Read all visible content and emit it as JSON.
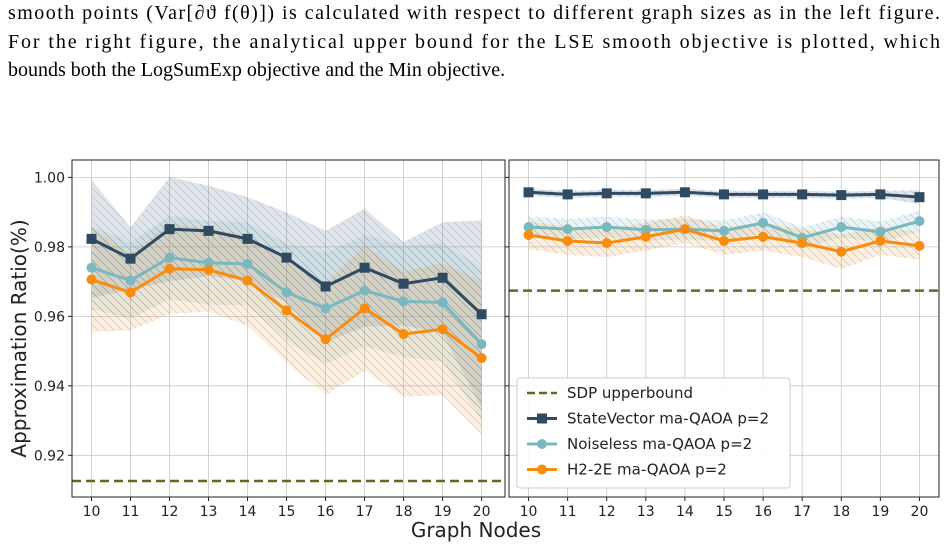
{
  "text": [
    "smooth points (Var[∂ϑ f(θ)]) is calculated with respect to different graph sizes as in the left figure.",
    "For the right figure, the analytical upper bound for the LSE smooth objective is plotted, which",
    "bounds both the LogSumExp objective and the Min objective."
  ],
  "xlabel": "Graph Nodes",
  "chart_data": [
    {
      "type": "line",
      "ylabel": "Approximation Ratio(%)",
      "x": [
        10,
        11,
        12,
        13,
        14,
        15,
        16,
        17,
        18,
        19,
        20
      ],
      "xlim": [
        9.5,
        20.6
      ],
      "xticks": [
        10,
        11,
        12,
        13,
        14,
        15,
        16,
        17,
        18,
        19,
        20
      ],
      "ylim": [
        0.908,
        1.005
      ],
      "yticks": [
        0.92,
        0.94,
        0.96,
        0.98,
        {
          "value": 1.0,
          "label": "1.00"
        }
      ],
      "ytick_labels": true,
      "grid": true,
      "hline": {
        "value": 0.9126,
        "color": "#6b6420"
      },
      "series": [
        {
          "color": "#2f4b64",
          "marker": "square",
          "values": [
            0.9823,
            0.9766,
            0.9851,
            0.9846,
            0.9823,
            0.9769,
            0.9686,
            0.974,
            0.9694,
            0.9711,
            0.9606
          ],
          "err": [
            0.017,
            0.009,
            0.015,
            0.013,
            0.012,
            0.013,
            0.016,
            0.017,
            0.012,
            0.016,
            0.027
          ]
        },
        {
          "color": "#7ab8bf",
          "marker": "circle",
          "values": [
            0.974,
            0.9703,
            0.9769,
            0.9754,
            0.9751,
            0.9669,
            0.9623,
            0.9674,
            0.9643,
            0.964,
            0.952
          ],
          "err": [
            0.012,
            0.011,
            0.012,
            0.012,
            0.012,
            0.014,
            0.016,
            0.016,
            0.016,
            0.017,
            0.022
          ]
        },
        {
          "color": "#f98c0d",
          "marker": "circle",
          "values": [
            0.9706,
            0.9669,
            0.9737,
            0.9734,
            0.9703,
            0.9617,
            0.9534,
            0.9623,
            0.9549,
            0.9563,
            0.948
          ],
          "err": [
            0.015,
            0.011,
            0.013,
            0.012,
            0.013,
            0.015,
            0.016,
            0.018,
            0.018,
            0.019,
            0.022
          ]
        }
      ]
    },
    {
      "type": "line",
      "x": [
        10,
        11,
        12,
        13,
        14,
        15,
        16,
        17,
        18,
        19,
        20
      ],
      "xlim": [
        9.5,
        20.5
      ],
      "xticks": [
        10,
        11,
        12,
        13,
        14,
        15,
        16,
        17,
        18,
        19,
        20
      ],
      "ylim": [
        0.908,
        1.005
      ],
      "yticks": [
        0.92,
        0.94,
        0.96,
        0.98,
        1.0
      ],
      "ytick_labels": false,
      "grid": true,
      "legend": "lower left",
      "hline": {
        "name": "SDP upperbound",
        "value": 0.9674,
        "color": "#6b6420"
      },
      "series": [
        {
          "name": "StateVector ma-QAOA p=2",
          "color": "#2f4b64",
          "marker": "square",
          "values": [
            0.9957,
            0.9951,
            0.9954,
            0.9954,
            0.9957,
            0.9951,
            0.9951,
            0.9951,
            0.9949,
            0.9951,
            0.9943
          ],
          "err": [
            0.001,
            0.001,
            0.001,
            0.001,
            0.001,
            0.001,
            0.001,
            0.001,
            0.001,
            0.001,
            0.002
          ]
        },
        {
          "name": "Noiseless ma-QAOA p=2",
          "color": "#7ab8bf",
          "marker": "circle",
          "values": [
            0.9857,
            0.9851,
            0.9857,
            0.9849,
            0.9851,
            0.9846,
            0.9869,
            0.9826,
            0.9857,
            0.9843,
            0.9874
          ],
          "err": [
            0.003,
            0.003,
            0.003,
            0.003,
            0.003,
            0.003,
            0.003,
            0.003,
            0.003,
            0.003,
            0.003
          ]
        },
        {
          "name": "H2-2E ma-QAOA p=2",
          "color": "#f98c0d",
          "marker": "circle",
          "values": [
            0.9834,
            0.9817,
            0.9811,
            0.9829,
            0.9851,
            0.9817,
            0.9829,
            0.9811,
            0.9786,
            0.9817,
            0.9803
          ],
          "err": [
            0.004,
            0.004,
            0.004,
            0.004,
            0.004,
            0.004,
            0.004,
            0.004,
            0.005,
            0.004,
            0.004
          ]
        }
      ]
    }
  ]
}
